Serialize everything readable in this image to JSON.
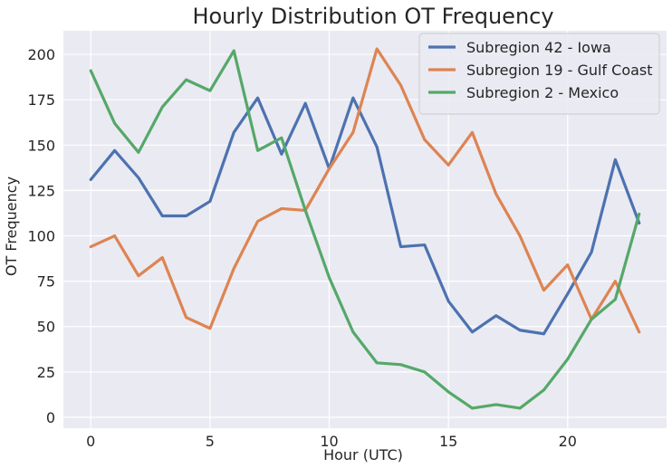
{
  "chart_data": {
    "type": "line",
    "title": "Hourly Distribution OT Frequency",
    "xlabel": "Hour (UTC)",
    "ylabel": "OT Frequency",
    "x": [
      0,
      1,
      2,
      3,
      4,
      5,
      6,
      7,
      8,
      9,
      10,
      11,
      12,
      13,
      14,
      15,
      16,
      17,
      18,
      19,
      20,
      21,
      22,
      23
    ],
    "xlim": [
      -1.15,
      24.15
    ],
    "ylim": [
      -6,
      213
    ],
    "xticks": [
      0,
      5,
      10,
      15,
      20
    ],
    "yticks": [
      0,
      25,
      50,
      75,
      100,
      125,
      150,
      175,
      200
    ],
    "grid": true,
    "legend_position": "top-right",
    "series": [
      {
        "name": "Subregion 42 - Iowa",
        "color": "#4c72b0",
        "values": [
          131,
          147,
          132,
          111,
          111,
          119,
          157,
          176,
          145,
          173,
          137,
          176,
          149,
          94,
          95,
          64,
          47,
          56,
          48,
          46,
          68,
          91,
          142,
          107
        ]
      },
      {
        "name": "Subregion 19 - Gulf Coast",
        "color": "#dd8452",
        "values": [
          94,
          100,
          78,
          88,
          55,
          49,
          82,
          108,
          115,
          114,
          137,
          157,
          203,
          183,
          153,
          139,
          157,
          123,
          100,
          70,
          84,
          54,
          75,
          47
        ]
      },
      {
        "name": "Subregion 2 - Mexico",
        "color": "#55a868",
        "values": [
          191,
          162,
          146,
          171,
          186,
          180,
          202,
          147,
          154,
          114,
          77,
          47,
          30,
          29,
          25,
          14,
          5,
          7,
          5,
          15,
          32,
          54,
          65,
          112
        ]
      }
    ]
  }
}
